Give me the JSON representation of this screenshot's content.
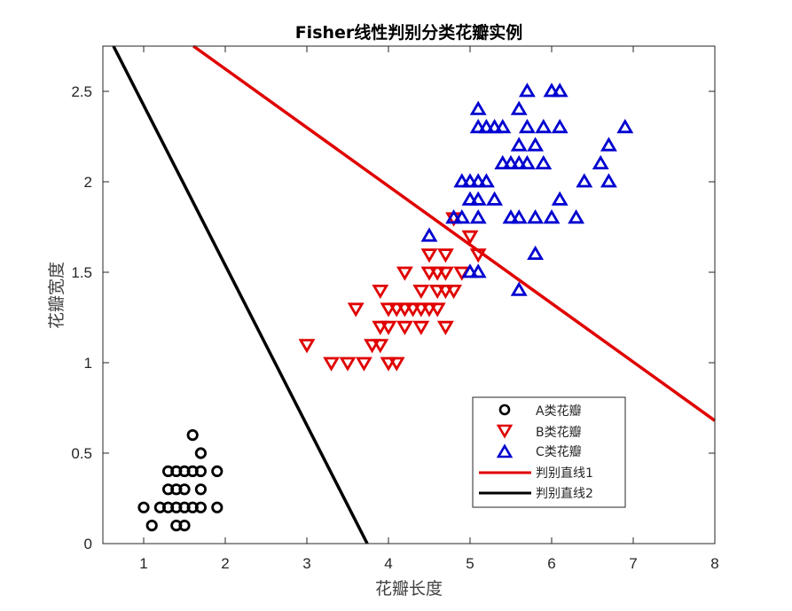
{
  "chart_data": {
    "type": "scatter",
    "title": "Fisher线性判别分类花瓣实例",
    "xlabel": "花瓣长度",
    "ylabel": "花瓣宽度",
    "xlim": [
      0.5,
      8
    ],
    "ylim": [
      0,
      2.75
    ],
    "xticks": [
      1,
      2,
      3,
      4,
      5,
      6,
      7,
      8
    ],
    "xtick_labels": [
      "1",
      "2",
      "3",
      "4",
      "5",
      "6",
      "7",
      "8"
    ],
    "yticks": [
      0,
      0.5,
      1,
      1.5,
      2,
      2.5
    ],
    "ytick_labels": [
      "0",
      "0.5",
      "1",
      "1.5",
      "2",
      "2.5"
    ],
    "grid": false,
    "legend_position": "lower right (inside)",
    "series": [
      {
        "name": "A类花瓣",
        "marker": "circle",
        "color": "#000000",
        "points": [
          [
            1.6,
            0.6
          ],
          [
            1.7,
            0.5
          ],
          [
            1.3,
            0.4
          ],
          [
            1.4,
            0.4
          ],
          [
            1.5,
            0.4
          ],
          [
            1.6,
            0.4
          ],
          [
            1.7,
            0.4
          ],
          [
            1.9,
            0.4
          ],
          [
            1.3,
            0.3
          ],
          [
            1.4,
            0.3
          ],
          [
            1.5,
            0.3
          ],
          [
            1.7,
            0.3
          ],
          [
            1.0,
            0.2
          ],
          [
            1.2,
            0.2
          ],
          [
            1.3,
            0.2
          ],
          [
            1.4,
            0.2
          ],
          [
            1.5,
            0.2
          ],
          [
            1.6,
            0.2
          ],
          [
            1.7,
            0.2
          ],
          [
            1.9,
            0.2
          ],
          [
            1.1,
            0.1
          ],
          [
            1.4,
            0.1
          ],
          [
            1.5,
            0.1
          ]
        ]
      },
      {
        "name": "B类花瓣",
        "marker": "triangle-down",
        "color": "#e00000",
        "points": [
          [
            3.3,
            1.0
          ],
          [
            3.5,
            1.0
          ],
          [
            3.7,
            1.0
          ],
          [
            4.0,
            1.0
          ],
          [
            4.1,
            1.0
          ],
          [
            3.0,
            1.1
          ],
          [
            3.8,
            1.1
          ],
          [
            3.9,
            1.1
          ],
          [
            3.9,
            1.2
          ],
          [
            4.0,
            1.2
          ],
          [
            4.2,
            1.2
          ],
          [
            4.4,
            1.2
          ],
          [
            4.7,
            1.2
          ],
          [
            3.6,
            1.3
          ],
          [
            4.0,
            1.3
          ],
          [
            4.1,
            1.3
          ],
          [
            4.2,
            1.3
          ],
          [
            4.3,
            1.3
          ],
          [
            4.4,
            1.3
          ],
          [
            4.5,
            1.3
          ],
          [
            4.6,
            1.3
          ],
          [
            3.9,
            1.4
          ],
          [
            4.4,
            1.4
          ],
          [
            4.6,
            1.4
          ],
          [
            4.7,
            1.4
          ],
          [
            4.8,
            1.4
          ],
          [
            4.2,
            1.5
          ],
          [
            4.5,
            1.5
          ],
          [
            4.6,
            1.5
          ],
          [
            4.7,
            1.5
          ],
          [
            4.9,
            1.5
          ],
          [
            4.5,
            1.6
          ],
          [
            4.7,
            1.6
          ],
          [
            5.1,
            1.6
          ],
          [
            5.0,
            1.7
          ],
          [
            4.8,
            1.8
          ]
        ]
      },
      {
        "name": "C类花瓣",
        "marker": "triangle-up",
        "color": "#0000d0",
        "points": [
          [
            5.6,
            1.4
          ],
          [
            5.0,
            1.5
          ],
          [
            5.1,
            1.5
          ],
          [
            5.8,
            1.6
          ],
          [
            4.5,
            1.7
          ],
          [
            4.8,
            1.8
          ],
          [
            4.9,
            1.8
          ],
          [
            5.1,
            1.8
          ],
          [
            5.5,
            1.8
          ],
          [
            5.6,
            1.8
          ],
          [
            5.8,
            1.8
          ],
          [
            6.0,
            1.8
          ],
          [
            6.3,
            1.8
          ],
          [
            5.0,
            1.9
          ],
          [
            5.1,
            1.9
          ],
          [
            5.3,
            1.9
          ],
          [
            6.1,
            1.9
          ],
          [
            4.9,
            2.0
          ],
          [
            5.0,
            2.0
          ],
          [
            5.1,
            2.0
          ],
          [
            5.2,
            2.0
          ],
          [
            6.4,
            2.0
          ],
          [
            6.7,
            2.0
          ],
          [
            5.4,
            2.1
          ],
          [
            5.5,
            2.1
          ],
          [
            5.6,
            2.1
          ],
          [
            5.7,
            2.1
          ],
          [
            5.9,
            2.1
          ],
          [
            6.6,
            2.1
          ],
          [
            5.6,
            2.2
          ],
          [
            5.8,
            2.2
          ],
          [
            6.7,
            2.2
          ],
          [
            5.1,
            2.3
          ],
          [
            5.2,
            2.3
          ],
          [
            5.3,
            2.3
          ],
          [
            5.4,
            2.3
          ],
          [
            5.7,
            2.3
          ],
          [
            5.9,
            2.3
          ],
          [
            6.1,
            2.3
          ],
          [
            6.9,
            2.3
          ],
          [
            5.1,
            2.4
          ],
          [
            5.6,
            2.4
          ],
          [
            5.7,
            2.5
          ],
          [
            6.0,
            2.5
          ],
          [
            6.1,
            2.5
          ]
        ]
      }
    ],
    "lines": [
      {
        "name": "判别直线1",
        "color": "#e00000",
        "from": [
          1.61,
          2.75
        ],
        "to": [
          8.0,
          0.68
        ]
      },
      {
        "name": "判别直线2",
        "color": "#000000",
        "from": [
          0.63,
          2.75
        ],
        "to": [
          3.74,
          0.0
        ]
      }
    ]
  },
  "legend": {
    "items": [
      {
        "label": "A类花瓣"
      },
      {
        "label": "B类花瓣"
      },
      {
        "label": "C类花瓣"
      },
      {
        "label": "判别直线1"
      },
      {
        "label": "判别直线2"
      }
    ]
  }
}
